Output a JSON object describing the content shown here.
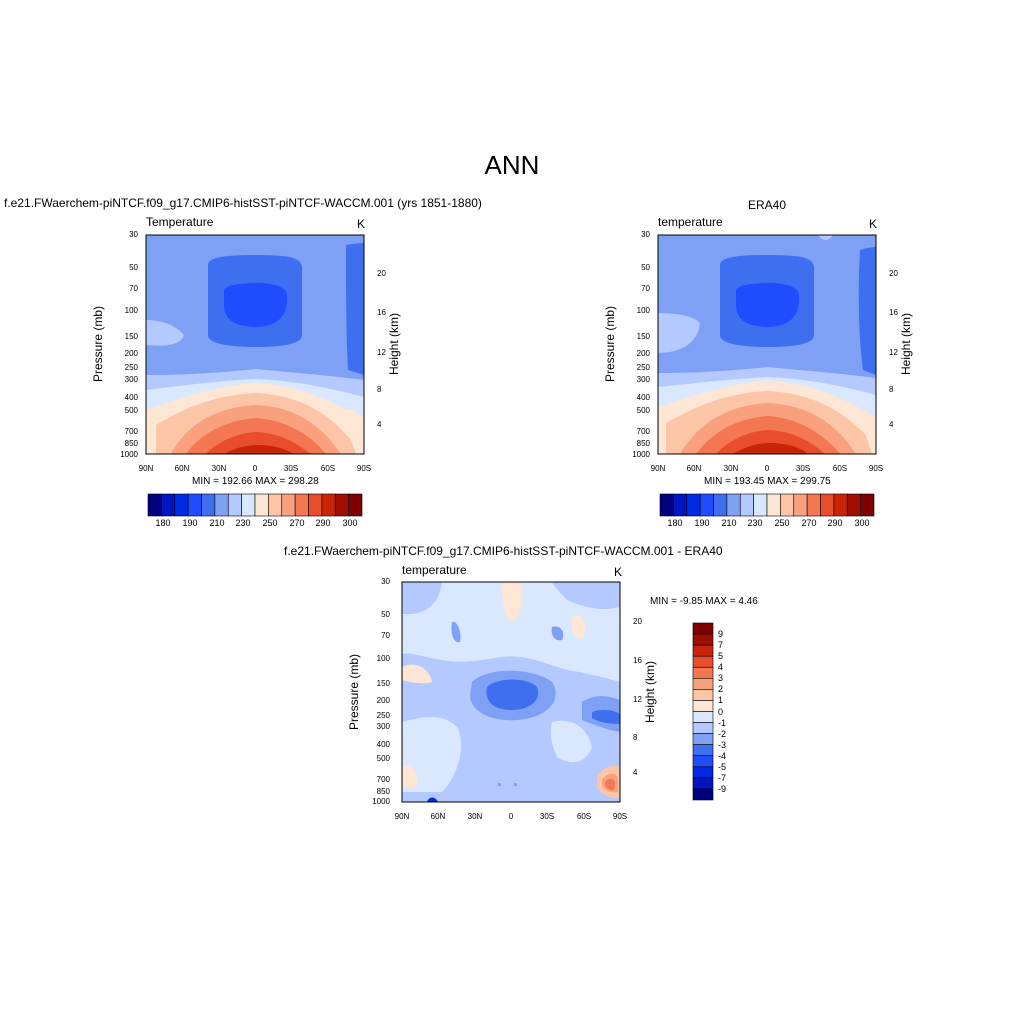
{
  "main_title": "ANN",
  "colors": {
    "abs_levels": [
      "#00007f",
      "#0015bf",
      "#002ae4",
      "#1f4cff",
      "#3e6fef",
      "#7ea0f5",
      "#b3c9ff",
      "#d9e8ff",
      "#fde6d4",
      "#fcc5a8",
      "#f9a07e",
      "#f47754",
      "#e84e2c",
      "#c82508",
      "#a00e00",
      "#7f0000"
    ],
    "diff_levels": [
      "#00007f",
      "#0015bf",
      "#002ae4",
      "#1f4cff",
      "#3e6fef",
      "#7ea0f5",
      "#b3c9ff",
      "#d9e8ff",
      "#fde6d4",
      "#fcc5a8",
      "#f9a07e",
      "#f47754",
      "#e84e2c",
      "#c82508",
      "#a00e00",
      "#7f0000"
    ]
  },
  "panels": {
    "model": {
      "title": "f.e21.FWaerchem-piNTCF.f09_g17.CMIP6-histSST-piNTCF-WACCM.001 (yrs 1851-1880)",
      "field": "Temperature",
      "unit": "K",
      "stats": "MIN = 192.66  MAX = 298.28",
      "ylabel": "Pressure (mb)",
      "y2label": "Height (km)"
    },
    "obs": {
      "title": "ERA40",
      "field": "temperature",
      "unit": "K",
      "stats": "MIN = 193.45  MAX = 299.75",
      "ylabel": "Pressure (mb)",
      "y2label": "Height (km)"
    },
    "diff": {
      "title": "f.e21.FWaerchem-piNTCF.f09_g17.CMIP6-histSST-piNTCF-WACCM.001 - ERA40",
      "field": "temperature",
      "unit": "K",
      "stats": "MIN =  -9.85  MAX =   4.46",
      "ylabel": "Pressure (mb)",
      "y2label": "Height (km)"
    }
  },
  "chart_data": [
    {
      "type": "heatmap",
      "name": "model",
      "x_ticks": [
        "90N",
        "60N",
        "30N",
        "0",
        "30S",
        "60S",
        "90S"
      ],
      "y_ticks": [
        "30",
        "50",
        "70",
        "100",
        "150",
        "200",
        "250",
        "300",
        "400",
        "500",
        "700",
        "850",
        "1000"
      ],
      "y2_ticks": [
        "20",
        "16",
        "12",
        "8",
        "4"
      ],
      "colorbar_ticks": [
        "180",
        "190",
        "210",
        "230",
        "250",
        "270",
        "290",
        "300"
      ],
      "min": 192.66,
      "max": 298.28
    },
    {
      "type": "heatmap",
      "name": "obs",
      "x_ticks": [
        "90N",
        "60N",
        "30N",
        "0",
        "30S",
        "60S",
        "90S"
      ],
      "y_ticks": [
        "30",
        "50",
        "70",
        "100",
        "150",
        "200",
        "250",
        "300",
        "400",
        "500",
        "700",
        "850",
        "1000"
      ],
      "y2_ticks": [
        "20",
        "16",
        "12",
        "8",
        "4"
      ],
      "colorbar_ticks": [
        "180",
        "190",
        "210",
        "230",
        "250",
        "270",
        "290",
        "300"
      ],
      "min": 193.45,
      "max": 299.75
    },
    {
      "type": "heatmap",
      "name": "diff",
      "x_ticks": [
        "90N",
        "60N",
        "30N",
        "0",
        "30S",
        "60S",
        "90S"
      ],
      "y_ticks": [
        "30",
        "50",
        "70",
        "100",
        "150",
        "200",
        "250",
        "300",
        "400",
        "500",
        "700",
        "850",
        "1000"
      ],
      "y2_ticks": [
        "20",
        "16",
        "12",
        "8",
        "4"
      ],
      "colorbar_ticks": [
        "9",
        "7",
        "5",
        "4",
        "3",
        "2",
        "1",
        "0",
        "-1",
        "-2",
        "-3",
        "-4",
        "-5",
        "-7",
        "-9"
      ],
      "min": -9.85,
      "max": 4.46
    }
  ]
}
